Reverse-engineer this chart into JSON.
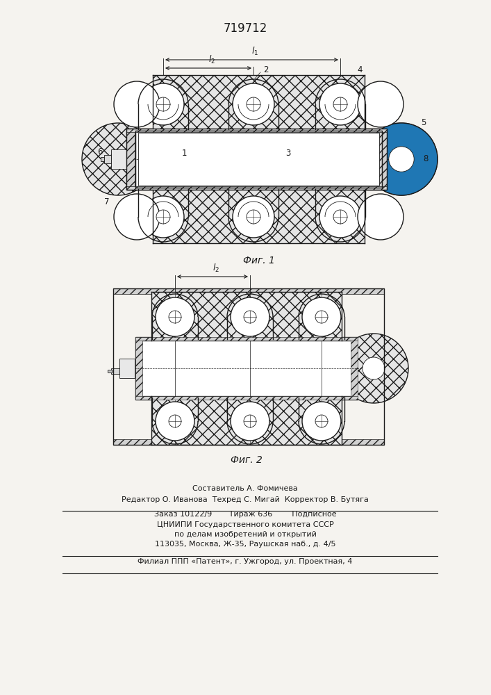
{
  "title": "719712",
  "fig1_caption": "Фиг. 1",
  "fig2_caption": "Фиг. 2",
  "text_line1": "Составитель А. Фомичева",
  "text_line2": "Редактор О. Иванова  Техред С. Мигай  Корректор В. Бутяга",
  "text_line3": "Заказ 10122/9       Тираж 636        Подписное",
  "text_line4": "ЦНИИПИ Государственного комитета СССР",
  "text_line5": "по делам изобретений и открытий",
  "text_line6": "113035, Москва, Ж-35, Раушская наб., д. 4/5",
  "text_line7": "Филиал ППП «Патент», г. Ужгород, ул. Проектная, 4",
  "bg_color": "#f5f3ef",
  "line_color": "#1a1a1a"
}
